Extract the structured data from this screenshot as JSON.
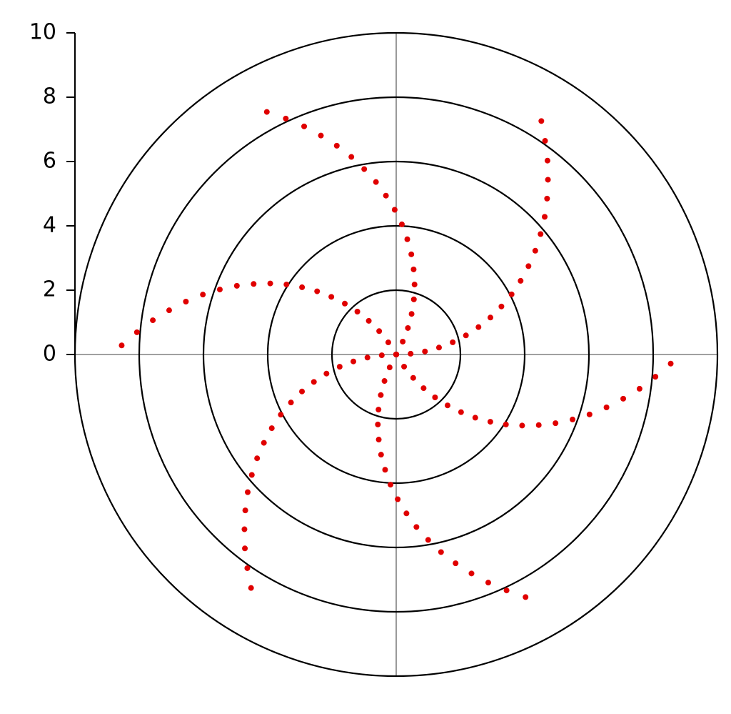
{
  "chart_data": {
    "type": "polar-scatter",
    "color": "#e00000",
    "rlim": [
      0,
      10
    ],
    "rticks": [
      0,
      2,
      4,
      6,
      8,
      10
    ],
    "grid": true,
    "r": [
      0,
      0.45,
      0.9,
      1.35,
      1.8,
      2.25,
      2.7,
      3.15,
      3.6,
      4.05,
      4.5,
      4.95,
      5.4,
      5.85,
      6.3,
      6.75,
      7.2,
      7.65,
      8.1,
      8.55,
      0,
      0.45,
      0.9,
      1.35,
      1.8,
      2.25,
      2.7,
      3.15,
      3.6,
      4.05,
      4.5,
      4.95,
      5.4,
      5.85,
      6.3,
      6.75,
      7.2,
      7.65,
      8.1,
      8.55,
      0,
      0.45,
      0.9,
      1.35,
      1.8,
      2.25,
      2.7,
      3.15,
      3.6,
      4.05,
      4.5,
      4.95,
      5.4,
      5.85,
      6.3,
      6.75,
      7.2,
      7.65,
      8.1,
      8.55,
      0,
      0.45,
      0.9,
      1.35,
      1.8,
      2.25,
      2.7,
      3.15,
      3.6,
      4.05,
      4.5,
      4.95,
      5.4,
      5.85,
      6.3,
      6.75,
      7.2,
      7.65,
      8.1,
      8.55,
      0,
      0.45,
      0.9,
      1.35,
      1.8,
      2.25,
      2.7,
      3.15,
      3.6,
      4.05,
      4.5,
      4.95,
      5.4,
      5.85,
      6.3,
      6.75,
      7.2,
      7.65,
      8.1,
      8.55,
      0,
      0.45,
      0.9,
      1.35,
      1.8,
      2.25,
      2.7,
      3.15,
      3.6,
      4.05,
      4.5,
      4.95,
      5.4,
      5.85,
      6.3,
      6.75,
      7.2,
      7.65,
      8.1,
      8.55
    ],
    "theta": [
      0,
      3.1,
      6.1,
      9.2,
      12.2,
      15.3,
      18.4,
      21.4,
      24.5,
      27.5,
      30.6,
      33.7,
      36.7,
      39.8,
      42.8,
      45.9,
      49,
      52,
      55.1,
      58.1,
      60,
      63.1,
      66.1,
      69.2,
      72.2,
      75.3,
      78.4,
      81.4,
      84.5,
      87.5,
      90.6,
      93.7,
      96.7,
      99.8,
      102.8,
      105.9,
      109,
      112,
      115.1,
      118.1,
      120,
      123.1,
      126.1,
      129.2,
      132.2,
      135.3,
      138.4,
      141.4,
      144.5,
      147.5,
      150.6,
      153.7,
      156.7,
      159.8,
      162.8,
      165.9,
      169,
      172,
      175.1,
      178.1,
      180,
      183.1,
      186.1,
      189.2,
      192.2,
      195.3,
      198.4,
      201.4,
      204.5,
      207.5,
      210.6,
      213.7,
      216.7,
      219.8,
      222.8,
      225.9,
      229,
      232,
      235.1,
      238.1,
      240,
      243.1,
      246.1,
      249.2,
      252.2,
      255.3,
      258.4,
      261.4,
      264.5,
      267.5,
      270.6,
      273.7,
      276.7,
      279.8,
      282.8,
      285.9,
      289,
      292,
      295.1,
      298.1,
      300,
      303.1,
      306.1,
      309.2,
      312.2,
      315.3,
      318.4,
      321.4,
      324.5,
      327.5,
      330.6,
      333.7,
      336.7,
      339.8,
      342.8,
      345.9,
      349,
      352,
      355.1,
      358.1
    ]
  }
}
